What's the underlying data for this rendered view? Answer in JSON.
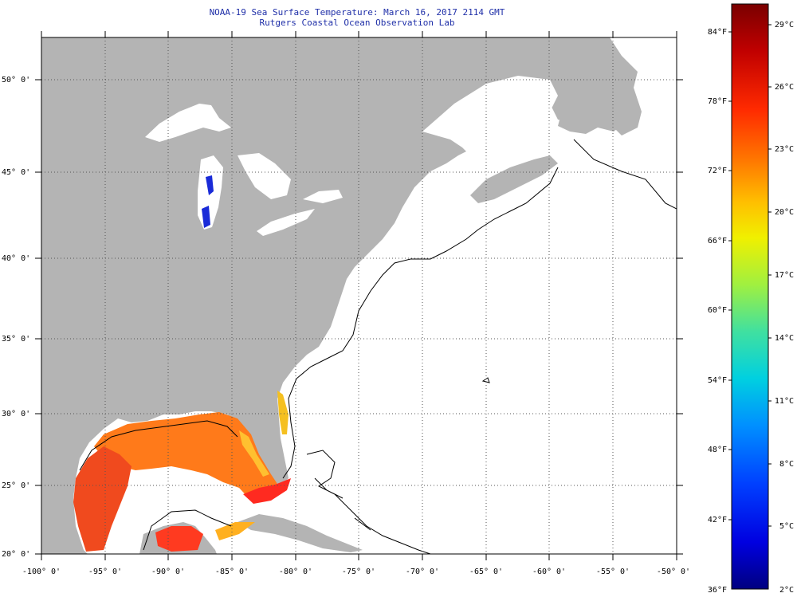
{
  "header": {
    "title": "NOAA-19 Sea Surface Temperature:  March 16, 2017 2114 GMT",
    "subtitle": "Rutgers Coastal Ocean Observation Lab"
  },
  "axes": {
    "lat_labels": [
      "50° 0'",
      "45° 0'",
      "40° 0'",
      "35° 0'",
      "30° 0'",
      "25° 0'",
      "20° 0'"
    ],
    "lon_labels": [
      "-100° 0'",
      "-95° 0'",
      "-90° 0'",
      "-85° 0'",
      "-80° 0'",
      "-75° 0'",
      "-70° 0'",
      "-65° 0'",
      "-60° 0'",
      "-55° 0'",
      "-50° 0'"
    ]
  },
  "colorbar": {
    "fahrenheit_labels": [
      "84°F",
      "78°F",
      "72°F",
      "66°F",
      "60°F",
      "54°F",
      "48°F",
      "42°F",
      "36°F"
    ],
    "celsius_labels": [
      "29°C",
      "26°C",
      "23°C",
      "20°C",
      "17°C",
      "14°C",
      "11°C",
      "8°C",
      "5°C",
      "2°C"
    ],
    "colors_top_to_bottom": [
      "#7a0000",
      "#c00000",
      "#ff2a00",
      "#ff7a00",
      "#ffc000",
      "#f0f000",
      "#a0f040",
      "#40e0a0",
      "#00d0e0",
      "#0090ff",
      "#0040ff",
      "#0000e0",
      "#000080"
    ]
  },
  "map": {
    "land_color": "#b4b4b4",
    "ocean_color": "#ffffff",
    "graticule": "dotted"
  }
}
